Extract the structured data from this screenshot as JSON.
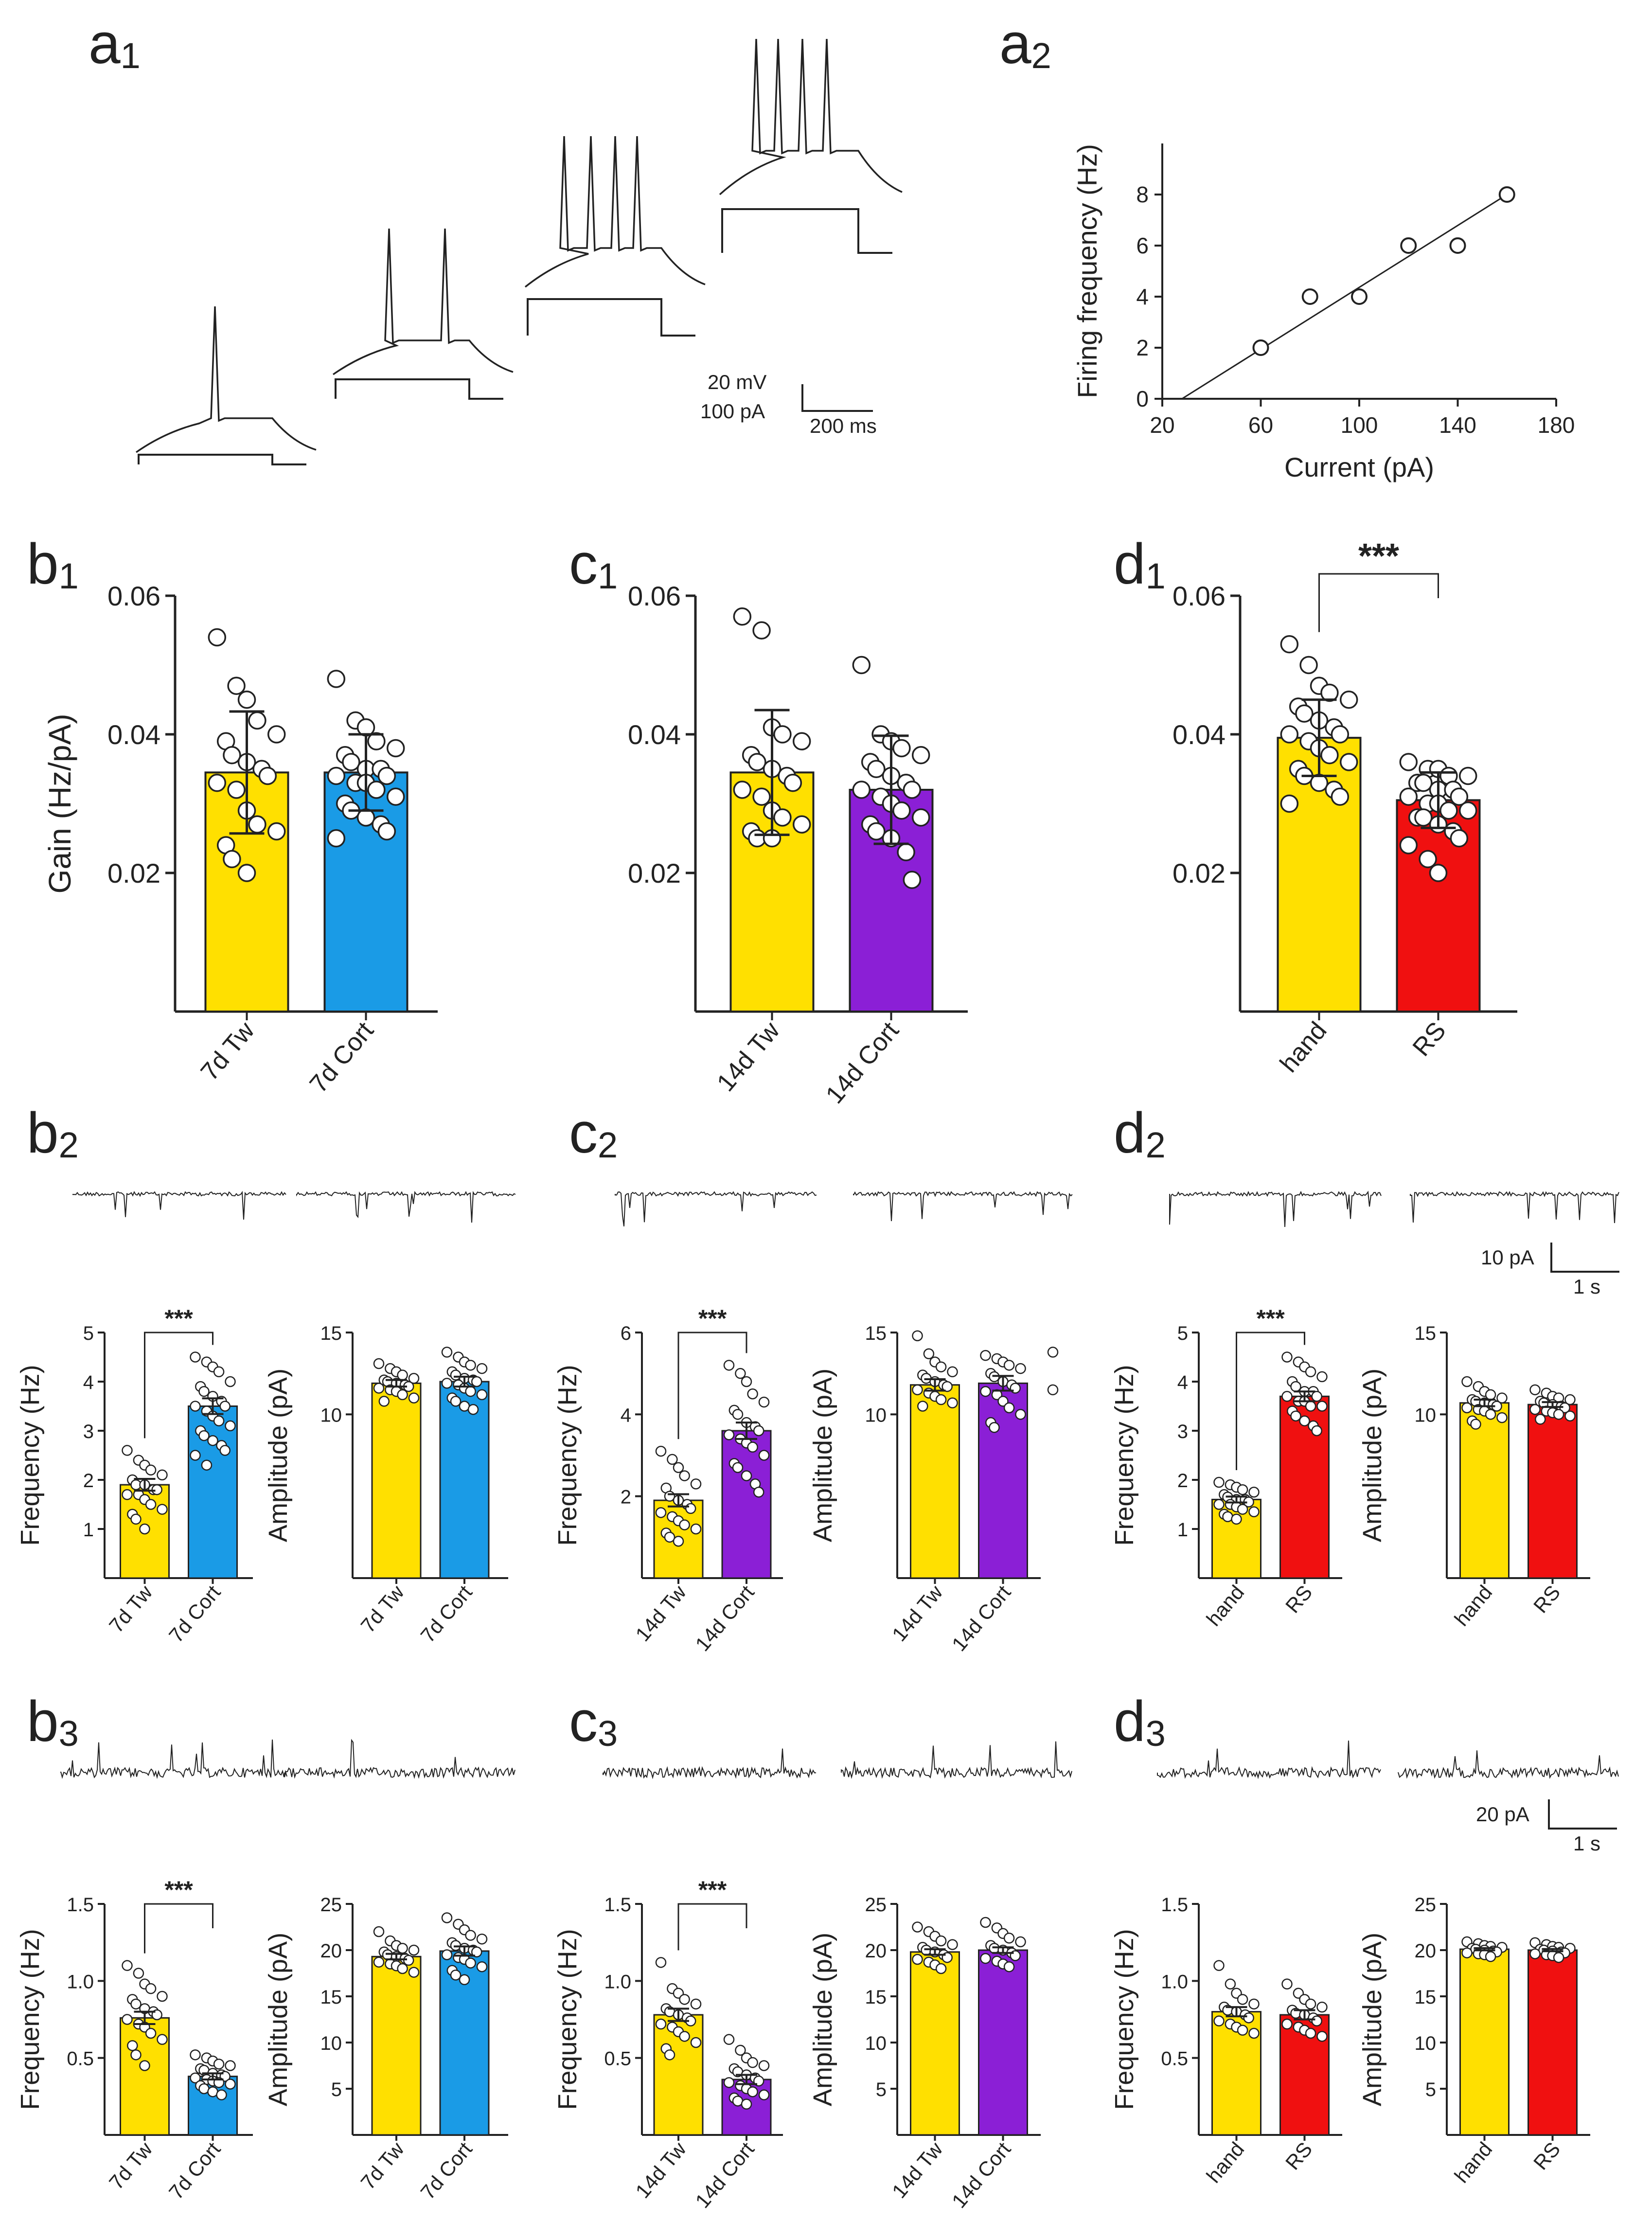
{
  "figure": {
    "colors": {
      "yellow": "#FFE000",
      "blue": "#1A9BE6",
      "purple": "#8B1FD6",
      "red": "#F01010",
      "ink": "#222222"
    },
    "panel_labels": {
      "a1": {
        "letter": "a",
        "sub": "1"
      },
      "a2": {
        "letter": "a",
        "sub": "2"
      },
      "b1": {
        "letter": "b",
        "sub": "1"
      },
      "c1": {
        "letter": "c",
        "sub": "1"
      },
      "d1": {
        "letter": "d",
        "sub": "1"
      },
      "b2": {
        "letter": "b",
        "sub": "2"
      },
      "c2": {
        "letter": "c",
        "sub": "2"
      },
      "d2": {
        "letter": "d",
        "sub": "2"
      },
      "b3": {
        "letter": "b",
        "sub": "3"
      },
      "c3": {
        "letter": "c",
        "sub": "3"
      },
      "d3": {
        "letter": "d",
        "sub": "3"
      }
    },
    "scale_bars": {
      "a1": {
        "v1": "20 mV",
        "v2": "100 pA",
        "h": "200 ms"
      },
      "d2": {
        "v": "10 pA",
        "h": "1 s"
      },
      "d3": {
        "v": "20 pA",
        "h": "1 s"
      }
    }
  },
  "chart_data": [
    {
      "id": "a2",
      "type": "scatter",
      "xlabel": "Current (pA)",
      "ylabel": "Firing frequency (Hz)",
      "xlim": [
        20,
        180
      ],
      "ylim": [
        0,
        10
      ],
      "xticks": [
        20,
        60,
        100,
        140,
        180
      ],
      "yticks": [
        0,
        2,
        4,
        6,
        8
      ],
      "x": [
        60,
        80,
        100,
        120,
        140,
        160
      ],
      "y": [
        2,
        4,
        4,
        6,
        6,
        8
      ],
      "fit": {
        "x": [
          28,
          160
        ],
        "y": [
          0,
          8
        ]
      }
    },
    {
      "id": "b1",
      "type": "bar",
      "ylabel": "Gain (Hz/pA)",
      "ylim": [
        0,
        0.06
      ],
      "yticks": [
        0.02,
        0.04,
        0.06
      ],
      "ytick_labels": [
        "0.02",
        "0.04",
        "0.06"
      ],
      "categories": [
        "7d Tw",
        "7d Cort"
      ],
      "colors": [
        "yellow",
        "blue"
      ],
      "values": [
        0.0345,
        0.0345
      ],
      "err": [
        0.0088,
        0.0055
      ],
      "points": [
        [
          0.054,
          0.047,
          0.045,
          0.042,
          0.04,
          0.039,
          0.037,
          0.036,
          0.035,
          0.034,
          0.033,
          0.032,
          0.029,
          0.027,
          0.026,
          0.024,
          0.022,
          0.02
        ],
        [
          0.048,
          0.042,
          0.041,
          0.039,
          0.038,
          0.037,
          0.036,
          0.035,
          0.035,
          0.034,
          0.034,
          0.033,
          0.033,
          0.032,
          0.031,
          0.03,
          0.029,
          0.028,
          0.027,
          0.026,
          0.025
        ]
      ],
      "sig": null
    },
    {
      "id": "c1",
      "type": "bar",
      "ylabel": "",
      "ylim": [
        0,
        0.06
      ],
      "yticks": [
        0.02,
        0.04,
        0.06
      ],
      "ytick_labels": [
        "0.02",
        "0.04",
        "0.06"
      ],
      "categories": [
        "14d Tw",
        "14d Cort"
      ],
      "colors": [
        "yellow",
        "purple"
      ],
      "values": [
        0.0345,
        0.032
      ],
      "err": [
        0.009,
        0.0078
      ],
      "points": [
        [
          0.057,
          0.055,
          0.041,
          0.04,
          0.039,
          0.037,
          0.036,
          0.035,
          0.034,
          0.033,
          0.032,
          0.031,
          0.029,
          0.028,
          0.027,
          0.026,
          0.025,
          0.025
        ],
        [
          0.05,
          0.04,
          0.039,
          0.038,
          0.037,
          0.036,
          0.035,
          0.034,
          0.033,
          0.032,
          0.032,
          0.031,
          0.03,
          0.029,
          0.028,
          0.027,
          0.026,
          0.025,
          0.023,
          0.019
        ]
      ],
      "sig": null
    },
    {
      "id": "d1",
      "type": "bar",
      "ylabel": "",
      "ylim": [
        0,
        0.06
      ],
      "yticks": [
        0.02,
        0.04,
        0.06
      ],
      "ytick_labels": [
        "0.02",
        "0.04",
        "0.06"
      ],
      "categories": [
        "hand",
        "RS"
      ],
      "colors": [
        "yellow",
        "red"
      ],
      "values": [
        0.0395,
        0.0305
      ],
      "err": [
        0.0055,
        0.004
      ],
      "points": [
        [
          0.053,
          0.05,
          0.047,
          0.046,
          0.045,
          0.044,
          0.043,
          0.042,
          0.041,
          0.04,
          0.04,
          0.039,
          0.038,
          0.037,
          0.036,
          0.035,
          0.034,
          0.033,
          0.032,
          0.031,
          0.03
        ],
        [
          0.036,
          0.035,
          0.035,
          0.034,
          0.034,
          0.033,
          0.033,
          0.032,
          0.032,
          0.031,
          0.031,
          0.03,
          0.03,
          0.029,
          0.029,
          0.028,
          0.028,
          0.027,
          0.026,
          0.025,
          0.024,
          0.022,
          0.02
        ]
      ],
      "sig": "***"
    },
    {
      "id": "b2f",
      "type": "bar",
      "ylabel": "Frequency (Hz)",
      "ylim": [
        0,
        5
      ],
      "yticks": [
        1,
        2,
        3,
        4,
        5
      ],
      "ytick_labels": [
        "1",
        "2",
        "3",
        "4",
        "5"
      ],
      "categories": [
        "7d Tw",
        "7d Cort"
      ],
      "colors": [
        "yellow",
        "blue"
      ],
      "values": [
        1.9,
        3.5
      ],
      "err": [
        0.12,
        0.16
      ],
      "points": [
        [
          2.6,
          2.4,
          2.3,
          2.2,
          2.1,
          2.0,
          1.9,
          1.9,
          1.8,
          1.8,
          1.7,
          1.7,
          1.6,
          1.5,
          1.4,
          1.3,
          1.2,
          1.0
        ],
        [
          4.5,
          4.4,
          4.3,
          4.2,
          4.0,
          3.9,
          3.8,
          3.7,
          3.6,
          3.5,
          3.5,
          3.4,
          3.3,
          3.2,
          3.1,
          3.0,
          2.9,
          2.8,
          2.7,
          2.6,
          2.5,
          2.3
        ]
      ],
      "sig": "***"
    },
    {
      "id": "b2a",
      "type": "bar",
      "ylabel": "Amplitude (pA)",
      "ylim": [
        0,
        15
      ],
      "yticks": [
        10,
        15
      ],
      "ytick_labels": [
        "10",
        "15"
      ],
      "categories": [
        "7d Tw",
        "7d Cort"
      ],
      "colors": [
        "yellow",
        "blue"
      ],
      "values": [
        11.9,
        12.0
      ],
      "err": [
        0.2,
        0.3
      ],
      "points": [
        [
          13.1,
          12.8,
          12.6,
          12.4,
          12.2,
          12.1,
          12.0,
          11.9,
          11.8,
          11.7,
          11.6,
          11.5,
          11.4,
          11.2,
          11.0,
          10.8
        ],
        [
          13.8,
          13.5,
          13.2,
          13.0,
          12.8,
          12.6,
          12.4,
          12.2,
          12.1,
          12.0,
          11.9,
          11.8,
          11.6,
          11.4,
          11.2,
          11.0,
          10.8,
          10.5,
          10.3
        ]
      ],
      "sig": null
    },
    {
      "id": "c2f",
      "type": "bar",
      "ylabel": "Frequency (Hz)",
      "ylim": [
        0,
        6
      ],
      "yticks": [
        2,
        4,
        6
      ],
      "ytick_labels": [
        "2",
        "4",
        "6"
      ],
      "categories": [
        "14d Tw",
        "14d Cort"
      ],
      "colors": [
        "yellow",
        "purple"
      ],
      "values": [
        1.9,
        3.6
      ],
      "err": [
        0.15,
        0.2
      ],
      "points": [
        [
          3.1,
          2.9,
          2.7,
          2.5,
          2.3,
          2.2,
          2.0,
          1.9,
          1.8,
          1.7,
          1.6,
          1.5,
          1.4,
          1.3,
          1.2,
          1.1,
          1.0,
          0.9
        ],
        [
          5.2,
          5.0,
          4.8,
          4.5,
          4.3,
          4.1,
          4.0,
          3.8,
          3.7,
          3.6,
          3.5,
          3.4,
          3.3,
          3.2,
          3.0,
          2.8,
          2.7,
          2.5,
          2.3,
          2.1
        ]
      ],
      "sig": "***"
    },
    {
      "id": "c2a",
      "type": "bar",
      "ylabel": "Amplitude (pA)",
      "ylim": [
        0,
        15
      ],
      "yticks": [
        10,
        15
      ],
      "ytick_labels": [
        "10",
        "15"
      ],
      "categories": [
        "14d Tw",
        "14d Cort"
      ],
      "colors": [
        "yellow",
        "purple"
      ],
      "values": [
        11.8,
        11.9
      ],
      "err": [
        0.35,
        0.45
      ],
      "points": [
        [
          14.8,
          13.7,
          13.2,
          12.9,
          12.6,
          12.4,
          12.2,
          12.0,
          11.8,
          11.7,
          11.5,
          11.3,
          11.1,
          10.9,
          10.7,
          10.5
        ],
        [
          13.6,
          13.4,
          13.2,
          13.0,
          12.8,
          12.5,
          12.3,
          12.0,
          11.8,
          11.6,
          11.4,
          11.2,
          10.8,
          10.4,
          10.0,
          9.5,
          9.2
        ]
      ],
      "extra_points": [
        13.8,
        11.5
      ],
      "sig": null
    },
    {
      "id": "d2f",
      "type": "bar",
      "ylabel": "Frequency (Hz)",
      "ylim": [
        0,
        5
      ],
      "yticks": [
        1,
        2,
        3,
        4,
        5
      ],
      "ytick_labels": [
        "1",
        "2",
        "3",
        "4",
        "5"
      ],
      "categories": [
        "hand",
        "RS"
      ],
      "colors": [
        "yellow",
        "red"
      ],
      "values": [
        1.6,
        3.7
      ],
      "err": [
        0.06,
        0.1
      ],
      "points": [
        [
          1.95,
          1.9,
          1.85,
          1.8,
          1.75,
          1.7,
          1.65,
          1.6,
          1.6,
          1.55,
          1.5,
          1.5,
          1.45,
          1.4,
          1.35,
          1.3,
          1.25,
          1.2
        ],
        [
          4.5,
          4.4,
          4.3,
          4.2,
          4.1,
          4.0,
          3.9,
          3.8,
          3.8,
          3.7,
          3.7,
          3.6,
          3.6,
          3.5,
          3.5,
          3.4,
          3.3,
          3.2,
          3.1,
          3.0
        ]
      ],
      "sig": "***"
    },
    {
      "id": "d2a",
      "type": "bar",
      "ylabel": "Amplitude (pA)",
      "ylim": [
        0,
        15
      ],
      "yticks": [
        10,
        15
      ],
      "ytick_labels": [
        "10",
        "15"
      ],
      "categories": [
        "hand",
        "RS"
      ],
      "colors": [
        "yellow",
        "red"
      ],
      "values": [
        10.7,
        10.6
      ],
      "err": [
        0.2,
        0.15
      ],
      "points": [
        [
          12.0,
          11.7,
          11.4,
          11.2,
          11.0,
          10.9,
          10.8,
          10.7,
          10.6,
          10.5,
          10.4,
          10.3,
          10.2,
          10.0,
          9.8,
          9.6,
          9.4
        ],
        [
          11.5,
          11.3,
          11.1,
          11.0,
          10.9,
          10.8,
          10.7,
          10.6,
          10.5,
          10.4,
          10.3,
          10.2,
          10.1,
          10.0,
          9.9,
          9.7
        ]
      ],
      "sig": null
    },
    {
      "id": "b3f",
      "type": "bar",
      "ylabel": "Frequency (Hz)",
      "ylim": [
        0,
        1.5
      ],
      "yticks": [
        0.5,
        1.0,
        1.5
      ],
      "ytick_labels": [
        "0.5",
        "1.0",
        "1.5"
      ],
      "categories": [
        "7d Tw",
        "7d Cort"
      ],
      "colors": [
        "yellow",
        "blue"
      ],
      "values": [
        0.76,
        0.38
      ],
      "err": [
        0.04,
        0.02
      ],
      "points": [
        [
          1.1,
          1.05,
          0.98,
          0.95,
          0.9,
          0.88,
          0.85,
          0.82,
          0.8,
          0.78,
          0.75,
          0.72,
          0.7,
          0.66,
          0.62,
          0.58,
          0.52,
          0.45
        ],
        [
          0.52,
          0.5,
          0.48,
          0.46,
          0.45,
          0.43,
          0.42,
          0.4,
          0.39,
          0.38,
          0.37,
          0.36,
          0.35,
          0.34,
          0.33,
          0.32,
          0.3,
          0.28,
          0.26
        ]
      ],
      "sig": "***"
    },
    {
      "id": "b3a",
      "type": "bar",
      "ylabel": "Amplitude (pA)",
      "ylim": [
        0,
        25
      ],
      "yticks": [
        5,
        10,
        15,
        20,
        25
      ],
      "ytick_labels": [
        "5",
        "10",
        "15",
        "20",
        "25"
      ],
      "categories": [
        "7d Tw",
        "7d Cort"
      ],
      "colors": [
        "yellow",
        "blue"
      ],
      "values": [
        19.3,
        19.9
      ],
      "err": [
        0.3,
        0.5
      ],
      "points": [
        [
          22.0,
          21.0,
          20.5,
          20.2,
          20.0,
          19.8,
          19.5,
          19.3,
          19.1,
          18.9,
          18.7,
          18.5,
          18.3,
          18.0,
          17.6
        ],
        [
          23.5,
          22.8,
          22.2,
          21.6,
          21.2,
          20.8,
          20.5,
          20.2,
          20.0,
          19.8,
          19.5,
          19.2,
          19.0,
          18.6,
          18.2,
          17.8,
          17.3,
          16.8
        ]
      ],
      "sig": null
    },
    {
      "id": "c3f",
      "type": "bar",
      "ylabel": "Frequency (Hz)",
      "ylim": [
        0,
        1.5
      ],
      "yticks": [
        0.5,
        1.0,
        1.5
      ],
      "ytick_labels": [
        "0.5",
        "1.0",
        "1.5"
      ],
      "categories": [
        "14d Tw",
        "14d Cort"
      ],
      "colors": [
        "yellow",
        "purple"
      ],
      "values": [
        0.78,
        0.36
      ],
      "err": [
        0.04,
        0.03
      ],
      "points": [
        [
          1.12,
          0.95,
          0.92,
          0.88,
          0.85,
          0.82,
          0.8,
          0.78,
          0.76,
          0.74,
          0.72,
          0.7,
          0.67,
          0.64,
          0.6,
          0.56,
          0.52
        ],
        [
          0.62,
          0.55,
          0.5,
          0.47,
          0.45,
          0.43,
          0.41,
          0.39,
          0.37,
          0.35,
          0.34,
          0.32,
          0.3,
          0.28,
          0.26,
          0.24,
          0.22,
          0.2
        ]
      ],
      "sig": "***"
    },
    {
      "id": "c3a",
      "type": "bar",
      "ylabel": "Amplitude (pA)",
      "ylim": [
        0,
        25
      ],
      "yticks": [
        5,
        10,
        15,
        20,
        25
      ],
      "ytick_labels": [
        "5",
        "10",
        "15",
        "20",
        "25"
      ],
      "categories": [
        "14d Tw",
        "14d Cort"
      ],
      "colors": [
        "yellow",
        "purple"
      ],
      "values": [
        19.8,
        20.0
      ],
      "err": [
        0.3,
        0.3
      ],
      "points": [
        [
          22.5,
          22.0,
          21.5,
          21.0,
          20.6,
          20.3,
          20.0,
          19.8,
          19.5,
          19.2,
          19.0,
          18.7,
          18.4,
          18.0
        ],
        [
          23.0,
          22.4,
          21.8,
          21.3,
          20.9,
          20.5,
          20.2,
          20.0,
          19.7,
          19.4,
          19.1,
          18.8,
          18.5,
          18.2
        ]
      ],
      "sig": null
    },
    {
      "id": "d3f",
      "type": "bar",
      "ylabel": "Frequency (Hz)",
      "ylim": [
        0,
        1.5
      ],
      "yticks": [
        0.5,
        1.0,
        1.5
      ],
      "ytick_labels": [
        "0.5",
        "1.0",
        "1.5"
      ],
      "categories": [
        "hand",
        "RS"
      ],
      "colors": [
        "yellow",
        "red"
      ],
      "values": [
        0.8,
        0.78
      ],
      "err": [
        0.03,
        0.03
      ],
      "points": [
        [
          1.1,
          0.98,
          0.92,
          0.88,
          0.85,
          0.83,
          0.81,
          0.8,
          0.78,
          0.76,
          0.74,
          0.72,
          0.7,
          0.68,
          0.66
        ],
        [
          0.98,
          0.92,
          0.88,
          0.85,
          0.83,
          0.81,
          0.79,
          0.78,
          0.76,
          0.74,
          0.72,
          0.7,
          0.68,
          0.66,
          0.64
        ]
      ],
      "sig": null
    },
    {
      "id": "d3a",
      "type": "bar",
      "ylabel": "Amplitude (pA)",
      "ylim": [
        0,
        25
      ],
      "yticks": [
        5,
        10,
        15,
        20,
        25
      ],
      "ytick_labels": [
        "5",
        "10",
        "15",
        "20",
        "25"
      ],
      "categories": [
        "hand",
        "RS"
      ],
      "colors": [
        "yellow",
        "red"
      ],
      "values": [
        20.1,
        20.0
      ],
      "err": [
        0.12,
        0.12
      ],
      "points": [
        [
          20.9,
          20.7,
          20.5,
          20.4,
          20.3,
          20.2,
          20.1,
          20.0,
          19.9,
          19.8,
          19.7,
          19.6,
          19.5,
          19.3
        ],
        [
          20.8,
          20.6,
          20.4,
          20.3,
          20.2,
          20.1,
          20.0,
          19.9,
          19.8,
          19.7,
          19.6,
          19.5,
          19.4,
          19.2
        ]
      ],
      "sig": null
    }
  ]
}
